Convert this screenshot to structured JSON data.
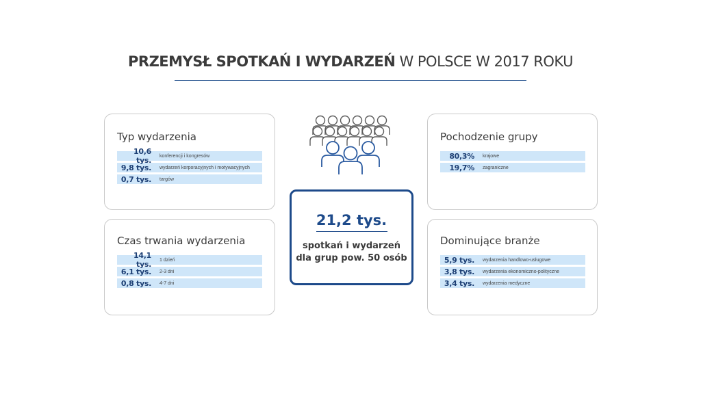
{
  "title": {
    "bold": "PRZEMYSŁ SPOTKAŃ I WYDARZEŃ",
    "rest": " W POLSCE W 2017 ROKU"
  },
  "colors": {
    "accent": "#1d4a8a",
    "bar": "#cfe6f9",
    "border": "#c9c9c9"
  },
  "people_icon": "crowd-icon",
  "center": {
    "value": "21,2 tys.",
    "line1": "spotkań i wydarzeń",
    "line2": "dla grup pow. 50 osób"
  },
  "cards": {
    "typ": {
      "heading": "Typ wydarzenia",
      "rows": [
        {
          "value": "10,6 tys.",
          "label": "konferencji i kongresów"
        },
        {
          "value": "9,8 tys.",
          "label": "wydarzeń korporacyjnych i motywacyjnych"
        },
        {
          "value": "0,7 tys.",
          "label": "targów"
        }
      ]
    },
    "czas": {
      "heading": "Czas trwania wydarzenia",
      "rows": [
        {
          "value": "14,1 tys.",
          "label": "1 dzień"
        },
        {
          "value": "6,1 tys.",
          "label": "2-3 dni"
        },
        {
          "value": "0,8 tys.",
          "label": "4-7 dni"
        }
      ]
    },
    "pochodzenie": {
      "heading": "Pochodzenie grupy",
      "rows": [
        {
          "value": "80,3%",
          "label": "krajowe"
        },
        {
          "value": "19,7%",
          "label": "zagraniczne"
        }
      ]
    },
    "branze": {
      "heading": "Dominujące branże",
      "rows": [
        {
          "value": "5,9 tys.",
          "label": "wydarzenia handlowo-usługowe"
        },
        {
          "value": "3,8 tys.",
          "label": "wydarzenia ekonomiczno-polityczne"
        },
        {
          "value": "3,4 tys.",
          "label": "wydarzenia medyczne"
        }
      ]
    }
  }
}
